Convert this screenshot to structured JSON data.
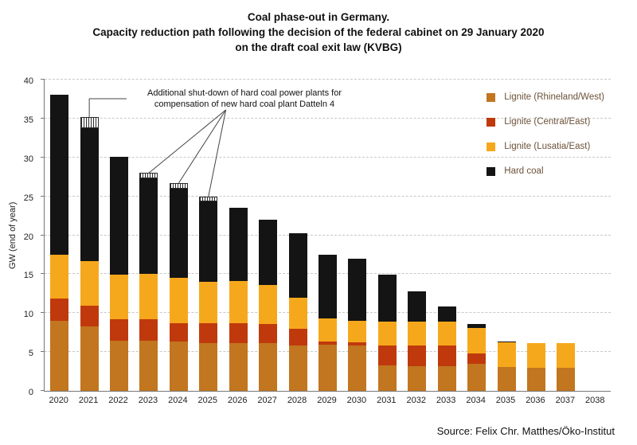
{
  "title": {
    "line1": "Coal phase-out in Germany.",
    "line2": "Capacity reduction path following the decision of the federal cabinet on 29 January 2020",
    "line3": "on the draft coal exit law (KVBG)"
  },
  "source": "Source: Felix Chr. Matthes/Öko-Institut",
  "chart_data": {
    "type": "bar",
    "stacked": true,
    "title": "Coal phase-out in Germany. Capacity reduction path following the decision of the federal cabinet on 29 January 2020 on the draft coal exit law (KVBG)",
    "xlabel": "",
    "ylabel": "GW (end of year)",
    "ylim": [
      0,
      40
    ],
    "ytick_step": 5,
    "grid": "dashed-horizontal",
    "legend_position": "top-right",
    "categories": [
      2020,
      2021,
      2022,
      2023,
      2024,
      2025,
      2026,
      2027,
      2028,
      2029,
      2030,
      2031,
      2032,
      2033,
      2034,
      2035,
      2036,
      2037,
      2038
    ],
    "series": [
      {
        "name": "Lignite (Rhineland/West)",
        "color": "#c1761f",
        "values": [
          9.0,
          8.3,
          6.4,
          6.4,
          6.3,
          6.1,
          6.1,
          6.1,
          5.8,
          5.9,
          5.8,
          3.3,
          3.2,
          3.2,
          3.5,
          3.1,
          3.0,
          3.0,
          0
        ]
      },
      {
        "name": "Lignite (Central/East)",
        "color": "#c0390c",
        "values": [
          2.9,
          2.6,
          2.8,
          2.8,
          2.4,
          2.6,
          2.6,
          2.5,
          2.2,
          0.4,
          0.4,
          2.5,
          2.6,
          2.6,
          1.3,
          0,
          0,
          0,
          0
        ]
      },
      {
        "name": "Lignite (Lusatia/East)",
        "color": "#f6a81c",
        "values": [
          5.6,
          5.8,
          5.7,
          5.8,
          5.8,
          5.3,
          5.4,
          5.0,
          4.0,
          3.0,
          2.8,
          3.1,
          3.1,
          3.1,
          3.3,
          3.1,
          3.1,
          3.1,
          0
        ]
      },
      {
        "name": "Hard coal",
        "color": "#141414",
        "values": [
          20.6,
          17.1,
          15.2,
          12.3,
          11.5,
          10.4,
          9.4,
          8.4,
          8.3,
          8.2,
          8.0,
          6.0,
          3.9,
          1.9,
          0.5,
          0.1,
          0,
          0,
          0
        ]
      },
      {
        "name": "Datteln 4 compensation (hatched)",
        "color": "hatch",
        "hatched": true,
        "in_legend": false,
        "values": [
          0,
          1.4,
          0,
          0.7,
          0.7,
          0.6,
          0,
          0,
          0,
          0,
          0,
          0,
          0,
          0,
          0,
          0,
          0,
          0,
          0
        ]
      }
    ],
    "annotation": {
      "text_line1": "Additional shut-down of hard coal power plants for",
      "text_line2": "compensation of new hard coal plant Datteln 4",
      "points_to_years": [
        2021,
        2023,
        2024,
        2025
      ]
    }
  }
}
